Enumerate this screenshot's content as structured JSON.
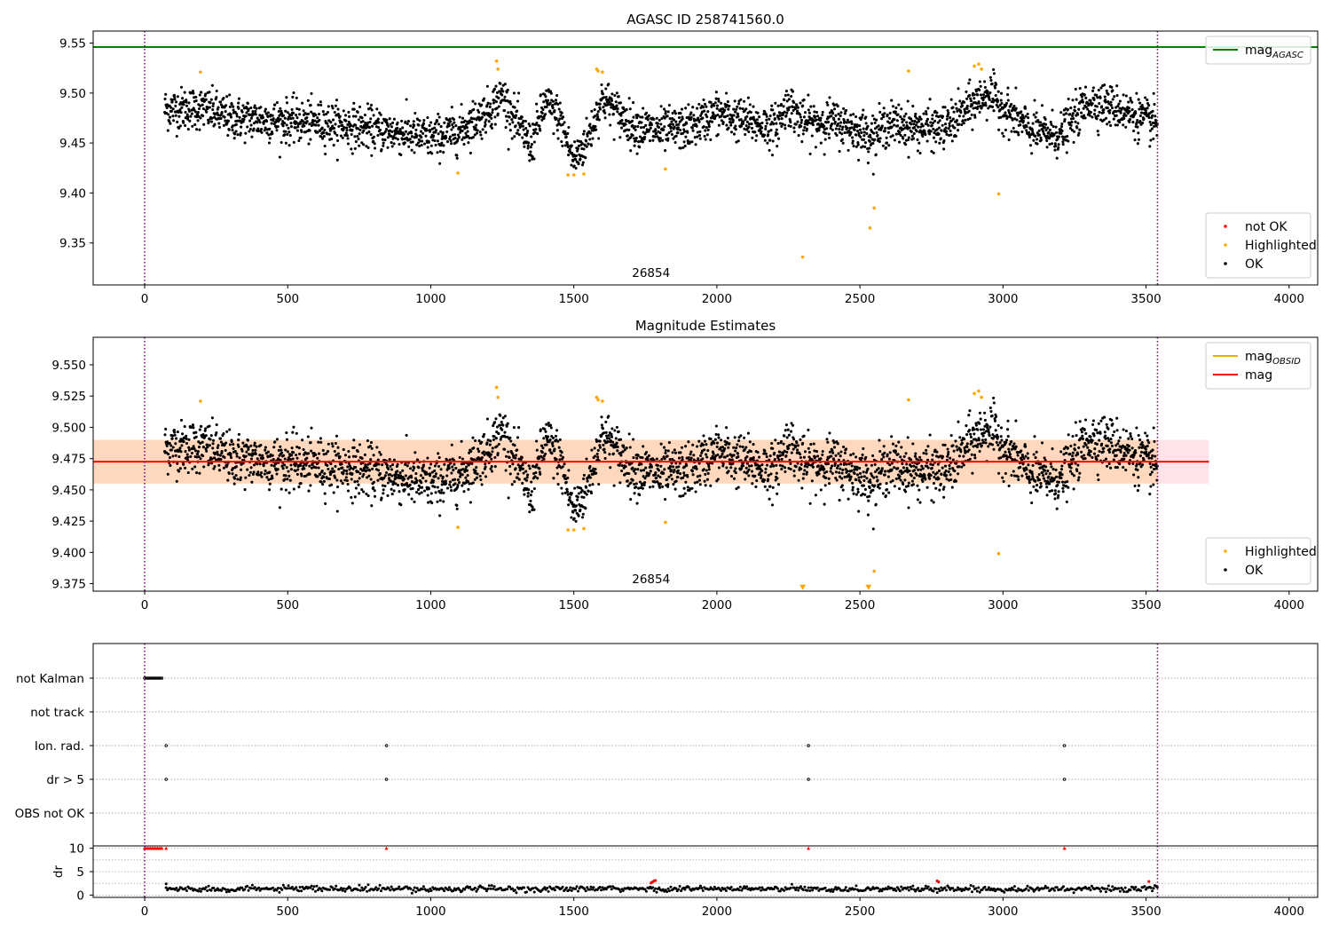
{
  "chart_data": [
    {
      "type": "scatter",
      "title": "AGASC ID 258741560.0",
      "xlim": [
        -180,
        4100
      ],
      "ylim": [
        9.308,
        9.562
      ],
      "xticks": [
        "0",
        "500",
        "1000",
        "1500",
        "2000",
        "2500",
        "3000",
        "3500",
        "4000"
      ],
      "yticks": [
        "9.35",
        "9.40",
        "9.45",
        "9.50",
        "9.55"
      ],
      "obsid_label": "26854",
      "hlines": [
        {
          "name": "mag_AGASC",
          "y": 9.546,
          "color": "#008000"
        }
      ],
      "vlines": [
        0,
        3540
      ],
      "legends": [
        {
          "position": "top-right",
          "entries": [
            {
              "label": "mag",
              "sub": "AGASC",
              "kind": "line",
              "color": "#008000"
            }
          ]
        },
        {
          "position": "bottom-right",
          "entries": [
            {
              "label": "not OK",
              "kind": "dot",
              "color": "#ff0000"
            },
            {
              "label": "Highlighted",
              "kind": "dot",
              "color": "#ffa500"
            },
            {
              "label": "OK",
              "kind": "dot",
              "color": "#000000"
            }
          ]
        }
      ],
      "highlighted_points": {
        "x": [
          195,
          1095,
          1230,
          1235,
          1480,
          1500,
          1535,
          1580,
          1585,
          1600,
          1820,
          2300,
          2535,
          2550,
          2670,
          2900,
          2915,
          2925,
          2985
        ],
        "y": [
          9.521,
          9.42,
          9.532,
          9.524,
          9.418,
          9.418,
          9.419,
          9.524,
          9.522,
          9.521,
          9.424,
          9.336,
          9.365,
          9.385,
          9.522,
          9.527,
          9.529,
          9.524,
          9.399
        ]
      },
      "ok_trend": {
        "x": [
          70,
          200,
          300,
          500,
          700,
          900,
          1000,
          1100,
          1200,
          1250,
          1300,
          1350,
          1400,
          1450,
          1500,
          1550,
          1600,
          1700,
          1800,
          1900,
          2000,
          2100,
          2200,
          2250,
          2300,
          2400,
          2500,
          2550,
          2600,
          2700,
          2800,
          2900,
          2950,
          3000,
          3100,
          3200,
          3300,
          3400,
          3540
        ],
        "y": [
          9.484,
          9.485,
          9.475,
          9.472,
          9.468,
          9.46,
          9.455,
          9.462,
          9.482,
          9.498,
          9.47,
          9.448,
          9.49,
          9.475,
          9.432,
          9.455,
          9.495,
          9.468,
          9.462,
          9.465,
          9.48,
          9.472,
          9.465,
          9.49,
          9.47,
          9.472,
          9.462,
          9.458,
          9.47,
          9.465,
          9.465,
          9.49,
          9.5,
          9.485,
          9.462,
          9.458,
          9.492,
          9.485,
          9.468
        ]
      },
      "ok_scatter_sd": 0.014
    },
    {
      "type": "scatter",
      "title": "Magnitude Estimates",
      "xlim": [
        -180,
        4100
      ],
      "ylim": [
        9.369,
        9.572
      ],
      "xticks": [
        "0",
        "500",
        "1000",
        "1500",
        "2000",
        "2500",
        "3000",
        "3500",
        "4000"
      ],
      "yticks": [
        "9.375",
        "9.400",
        "9.425",
        "9.450",
        "9.475",
        "9.500",
        "9.525",
        "9.550"
      ],
      "obsid_label": "26854",
      "vlines": [
        0,
        3540
      ],
      "hlines": [
        {
          "name": "mag",
          "y": 9.4725,
          "color": "#ff0000",
          "x0": -180,
          "x1": 3720
        }
      ],
      "bands": [
        {
          "y0": 9.455,
          "y1": 9.49,
          "x0": -180,
          "x1": 3720,
          "color": "#ffc0cb"
        },
        {
          "y0": 9.455,
          "y1": 9.49,
          "x0": -180,
          "x1": 3540,
          "color": "#ffa500"
        }
      ],
      "legends": [
        {
          "position": "top-right",
          "entries": [
            {
              "label": "mag",
              "sub": "OBSID",
              "kind": "line",
              "color": "#ffa500"
            },
            {
              "label": "mag",
              "sub": "",
              "kind": "line",
              "color": "#ff0000"
            }
          ]
        },
        {
          "position": "bottom-right",
          "entries": [
            {
              "label": "Highlighted",
              "kind": "dot",
              "color": "#ffa500"
            },
            {
              "label": "OK",
              "kind": "dot",
              "color": "#000000"
            }
          ]
        }
      ],
      "highlighted_points": {
        "x": [
          195,
          1095,
          1230,
          1235,
          1480,
          1500,
          1535,
          1580,
          1585,
          1600,
          1820,
          2550,
          2670,
          2900,
          2915,
          2925,
          2985
        ],
        "y": [
          9.521,
          9.42,
          9.532,
          9.524,
          9.418,
          9.418,
          9.419,
          9.524,
          9.522,
          9.521,
          9.424,
          9.385,
          9.522,
          9.527,
          9.529,
          9.524,
          9.399
        ]
      },
      "offscale_markers": {
        "x": [
          2300,
          2530
        ],
        "y": [
          9.372,
          9.372
        ]
      },
      "ok_trend_ref": 0,
      "ok_scatter_sd": 0.014
    },
    {
      "type": "scatter",
      "title": "",
      "xlim": [
        -180,
        4100
      ],
      "xticks": [
        "0",
        "500",
        "1000",
        "1500",
        "2000",
        "2500",
        "3000",
        "3500",
        "4000"
      ],
      "vlines": [
        0,
        3540
      ],
      "flag_rows": [
        "not Kalman",
        "not track",
        "Ion. rad.",
        "dr > 5",
        "OBS not OK"
      ],
      "flags": {
        "not Kalman": {
          "x": [
            0,
            5,
            10,
            15,
            20,
            25,
            30,
            35,
            40,
            45,
            50,
            55,
            60
          ]
        },
        "not track": {
          "x": []
        },
        "Ion. rad.": {
          "x": [
            75,
            845,
            2320,
            3215
          ]
        },
        "dr > 5": {
          "x": [
            75,
            845,
            2320,
            3215
          ]
        },
        "OBS not OK": {
          "x": []
        }
      },
      "dr_panel": {
        "ylabel": "dr",
        "ylim": [
          -0.5,
          10.5
        ],
        "yticks": [
          "0",
          "5",
          "10"
        ],
        "high_points": {
          "x": [
            0,
            5,
            10,
            15,
            20,
            25,
            30,
            35,
            40,
            45,
            50,
            55,
            60,
            75,
            845,
            2320,
            3215
          ],
          "y": [
            10,
            10,
            10,
            10,
            10,
            10,
            10,
            10,
            10,
            10,
            10,
            10,
            10,
            10,
            10,
            10,
            10
          ]
        },
        "red_points": {
          "x": [
            1770,
            1775,
            1780,
            1785,
            2770,
            2775,
            3510
          ],
          "y": [
            2.6,
            2.8,
            3.0,
            3.1,
            3.0,
            2.8,
            2.9
          ]
        },
        "baseline_mean": 1.3,
        "baseline_sd": 0.6
      }
    }
  ]
}
